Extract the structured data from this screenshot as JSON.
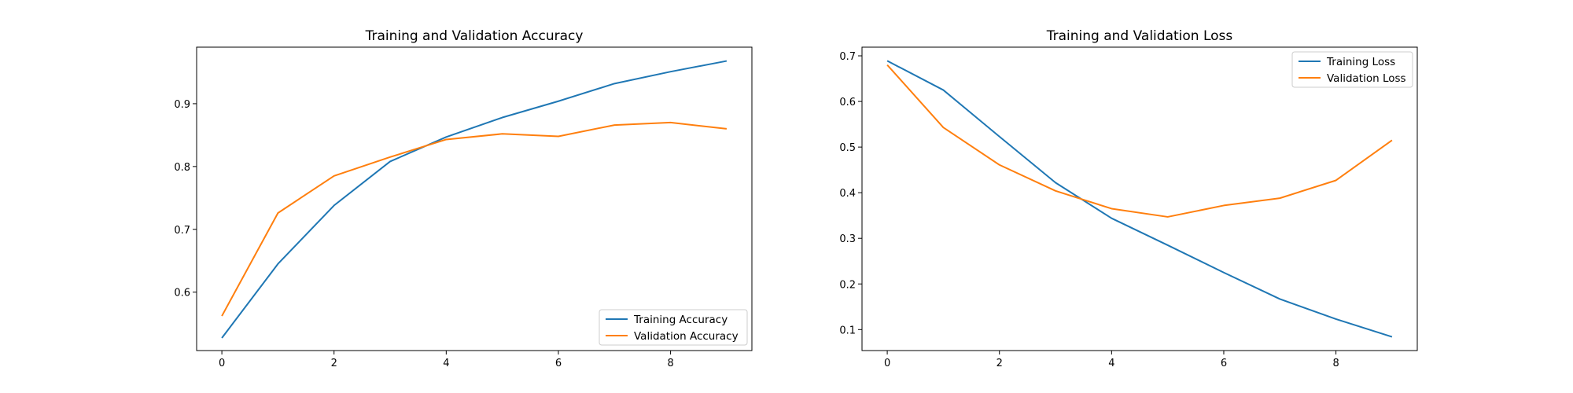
{
  "chart_data": [
    {
      "type": "line",
      "title": "Training and Validation Accuracy",
      "xlabel": "",
      "ylabel": "",
      "xlim": [
        -0.45,
        9.45
      ],
      "ylim": [
        0.507,
        0.99
      ],
      "xticks": [
        0,
        2,
        4,
        6,
        8
      ],
      "yticks": [
        0.6,
        0.7,
        0.8,
        0.9
      ],
      "xtick_labels": [
        "0",
        "2",
        "4",
        "6",
        "8"
      ],
      "ytick_labels": [
        "0.6",
        "0.7",
        "0.8",
        "0.9"
      ],
      "grid": false,
      "legend_position": "lower-right",
      "x": [
        0,
        1,
        2,
        3,
        4,
        5,
        6,
        7,
        8,
        9
      ],
      "series": [
        {
          "name": "Training Accuracy",
          "color": "#1f77b4",
          "values": [
            0.527,
            0.645,
            0.738,
            0.808,
            0.847,
            0.878,
            0.904,
            0.932,
            0.951,
            0.968
          ]
        },
        {
          "name": "Validation Accuracy",
          "color": "#ff7f0e",
          "values": [
            0.562,
            0.726,
            0.785,
            0.815,
            0.843,
            0.852,
            0.848,
            0.866,
            0.87,
            0.86
          ]
        }
      ]
    },
    {
      "type": "line",
      "title": "Training and Validation Loss",
      "xlabel": "",
      "ylabel": "",
      "xlim": [
        -0.45,
        9.45
      ],
      "ylim": [
        0.054,
        0.719
      ],
      "xticks": [
        0,
        2,
        4,
        6,
        8
      ],
      "yticks": [
        0.1,
        0.2,
        0.3,
        0.4,
        0.5,
        0.6,
        0.7
      ],
      "xtick_labels": [
        "0",
        "2",
        "4",
        "6",
        "8"
      ],
      "ytick_labels": [
        "0.1",
        "0.2",
        "0.3",
        "0.4",
        "0.5",
        "0.6",
        "0.7"
      ],
      "grid": false,
      "legend_position": "upper-right",
      "x": [
        0,
        1,
        2,
        3,
        4,
        5,
        6,
        7,
        8,
        9
      ],
      "series": [
        {
          "name": "Training Loss",
          "color": "#1f77b4",
          "values": [
            0.689,
            0.625,
            0.523,
            0.422,
            0.344,
            0.285,
            0.225,
            0.167,
            0.123,
            0.084
          ]
        },
        {
          "name": "Validation Loss",
          "color": "#ff7f0e",
          "values": [
            0.68,
            0.543,
            0.461,
            0.404,
            0.365,
            0.347,
            0.372,
            0.388,
            0.427,
            0.515
          ]
        }
      ]
    }
  ]
}
